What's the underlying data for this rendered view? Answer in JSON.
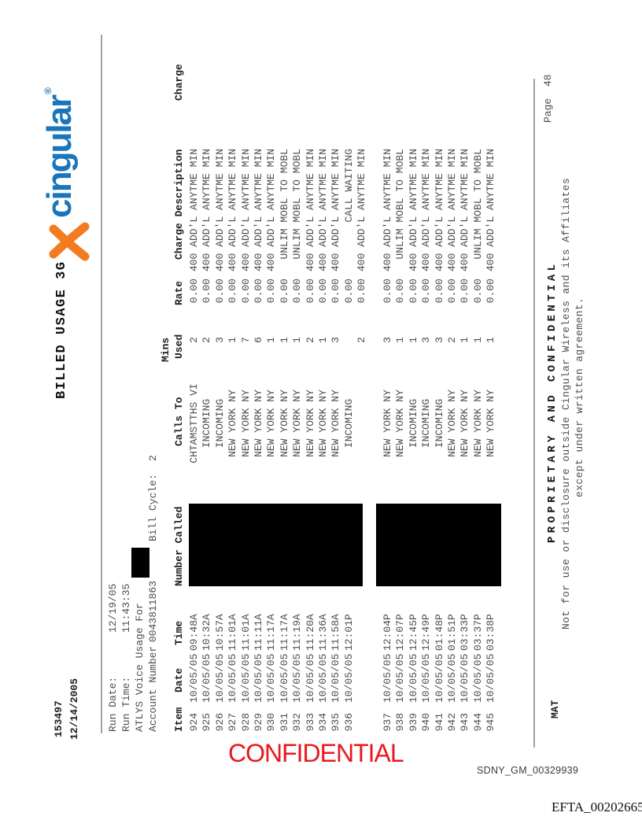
{
  "colors": {
    "logo-blue": "#1a75bb",
    "logo-orange": "#f37b21",
    "stamp-red": "#e8191e"
  },
  "header": {
    "doc_number": "153497",
    "doc_date": "12/14/2005",
    "title": "BILLED USAGE 3G",
    "logo_text": "cingular",
    "logo_reg": "®"
  },
  "info": {
    "run_date_label": "Run Date:",
    "run_date": "12/19/05",
    "run_time_label": "Run Time:",
    "run_time": "11:43:35",
    "usage_for_label": "ATLYS Voice Usage For",
    "account_label": "Account Number",
    "account_number": "0043811863",
    "bill_cycle_label": "Bill Cycle:",
    "bill_cycle": "2"
  },
  "table": {
    "headers": {
      "item": "Item",
      "date": "Date",
      "time": "Time",
      "number_called": "Number Called",
      "calls_to": "Calls To",
      "mins_line1": "Mins",
      "mins_line2": "Used",
      "rate": "Rate",
      "charge_description": "Charge Description",
      "charge": "Charge"
    },
    "rows": [
      {
        "item": "924",
        "date": "10/05/05",
        "time": "09:48A",
        "calls_to": "CHTAMSTTHS VI",
        "mins": "2",
        "rate": "0.00",
        "desc": "400 ADD'L ANYTME MIN"
      },
      {
        "item": "925",
        "date": "10/05/05",
        "time": "10:32A",
        "calls_to": "INCOMING",
        "mins": "2",
        "rate": "0.00",
        "desc": "400 ADD'L ANYTME MIN"
      },
      {
        "item": "926",
        "date": "10/05/05",
        "time": "10:57A",
        "calls_to": "INCOMING",
        "mins": "3",
        "rate": "0.00",
        "desc": "400 ADD'L ANYTME MIN"
      },
      {
        "item": "927",
        "date": "10/05/05",
        "time": "11:01A",
        "calls_to": "NEW YORK NY",
        "mins": "1",
        "rate": "0.00",
        "desc": "400 ADD'L ANYTME MIN"
      },
      {
        "item": "928",
        "date": "10/05/05",
        "time": "11:01A",
        "calls_to": "NEW YORK NY",
        "mins": "7",
        "rate": "0.00",
        "desc": "400 ADD'L ANYTME MIN"
      },
      {
        "item": "929",
        "date": "10/05/05",
        "time": "11:11A",
        "calls_to": "NEW YORK NY",
        "mins": "6",
        "rate": "0.00",
        "desc": "400 ADD'L ANYTME MIN"
      },
      {
        "item": "930",
        "date": "10/05/05",
        "time": "11:17A",
        "calls_to": "NEW YORK NY",
        "mins": "1",
        "rate": "0.00",
        "desc": "400 ADD'L ANYTME MIN"
      },
      {
        "item": "931",
        "date": "10/05/05",
        "time": "11:17A",
        "calls_to": "NEW YORK NY",
        "mins": "1",
        "rate": "0.00",
        "desc": "UNLIM MOBL TO MOBL"
      },
      {
        "item": "932",
        "date": "10/05/05",
        "time": "11:19A",
        "calls_to": "NEW YORK NY",
        "mins": "1",
        "rate": "0.00",
        "desc": "UNLIM MOBL TO MOBL"
      },
      {
        "item": "933",
        "date": "10/05/05",
        "time": "11:20A",
        "calls_to": "NEW YORK NY",
        "mins": "2",
        "rate": "0.00",
        "desc": "400 ADD'L ANYTME MIN"
      },
      {
        "item": "934",
        "date": "10/05/05",
        "time": "11:36A",
        "calls_to": "NEW YORK NY",
        "mins": "1",
        "rate": "0.00",
        "desc": "400 ADD'L ANYTME MIN"
      },
      {
        "item": "935",
        "date": "10/05/05",
        "time": "11:58A",
        "calls_to": "NEW YORK NY",
        "mins": "3",
        "rate": "0.00",
        "desc": "400 ADD'L ANYTME MIN"
      },
      {
        "item": "936",
        "date": "10/05/05",
        "time": "12:01P",
        "calls_to": "INCOMING",
        "mins": "",
        "rate": "0.00",
        "desc": "CALL WAITING"
      },
      {
        "item": "",
        "date": "",
        "time": "",
        "calls_to": "",
        "mins": "2",
        "rate": "0.00",
        "desc": "400 ADD'L ANYTME MIN"
      },
      {
        "item": "937",
        "date": "10/05/05",
        "time": "12:04P",
        "calls_to": "NEW YORK NY",
        "mins": "3",
        "rate": "0.00",
        "desc": "400 ADD'L ANYTME MIN",
        "gap_before": true
      },
      {
        "item": "938",
        "date": "10/05/05",
        "time": "12:07P",
        "calls_to": "NEW YORK NY",
        "mins": "1",
        "rate": "0.00",
        "desc": "UNLIM MOBL TO MOBL"
      },
      {
        "item": "939",
        "date": "10/05/05",
        "time": "12:45P",
        "calls_to": "INCOMING",
        "mins": "1",
        "rate": "0.00",
        "desc": "400 ADD'L ANYTME MIN"
      },
      {
        "item": "940",
        "date": "10/05/05",
        "time": "12:49P",
        "calls_to": "INCOMING",
        "mins": "3",
        "rate": "0.00",
        "desc": "400 ADD'L ANYTME MIN"
      },
      {
        "item": "941",
        "date": "10/05/05",
        "time": "01:48P",
        "calls_to": "INCOMING",
        "mins": "3",
        "rate": "0.00",
        "desc": "400 ADD'L ANYTME MIN"
      },
      {
        "item": "942",
        "date": "10/05/05",
        "time": "01:51P",
        "calls_to": "NEW YORK NY",
        "mins": "2",
        "rate": "0.00",
        "desc": "400 ADD'L ANYTME MIN"
      },
      {
        "item": "943",
        "date": "10/05/05",
        "time": "03:33P",
        "calls_to": "NEW YORK NY",
        "mins": "1",
        "rate": "0.00",
        "desc": "400 ADD'L ANYTME MIN"
      },
      {
        "item": "944",
        "date": "10/05/05",
        "time": "03:37P",
        "calls_to": "NEW YORK NY",
        "mins": "1",
        "rate": "0.00",
        "desc": "UNLIM MOBL TO MOBL"
      },
      {
        "item": "945",
        "date": "10/05/05",
        "time": "03:38P",
        "calls_to": "NEW YORK NY",
        "mins": "1",
        "rate": "0.00",
        "desc": "400 ADD'L ANYTME MIN"
      }
    ]
  },
  "footer": {
    "left_code": "MAT",
    "proprietary": "PROPRIETARY AND CONFIDENTIAL",
    "line1": "Not for use or disclosure outside Cingular Wireless and its Affiliates",
    "line2": "except under written agreement.",
    "page_label": "Page",
    "page_number": "48"
  },
  "stamps": {
    "confidential": "CONFIDENTIAL",
    "bates_sdny": "SDNY_GM_00329939",
    "bates_efta": "EFTA_00202665"
  }
}
